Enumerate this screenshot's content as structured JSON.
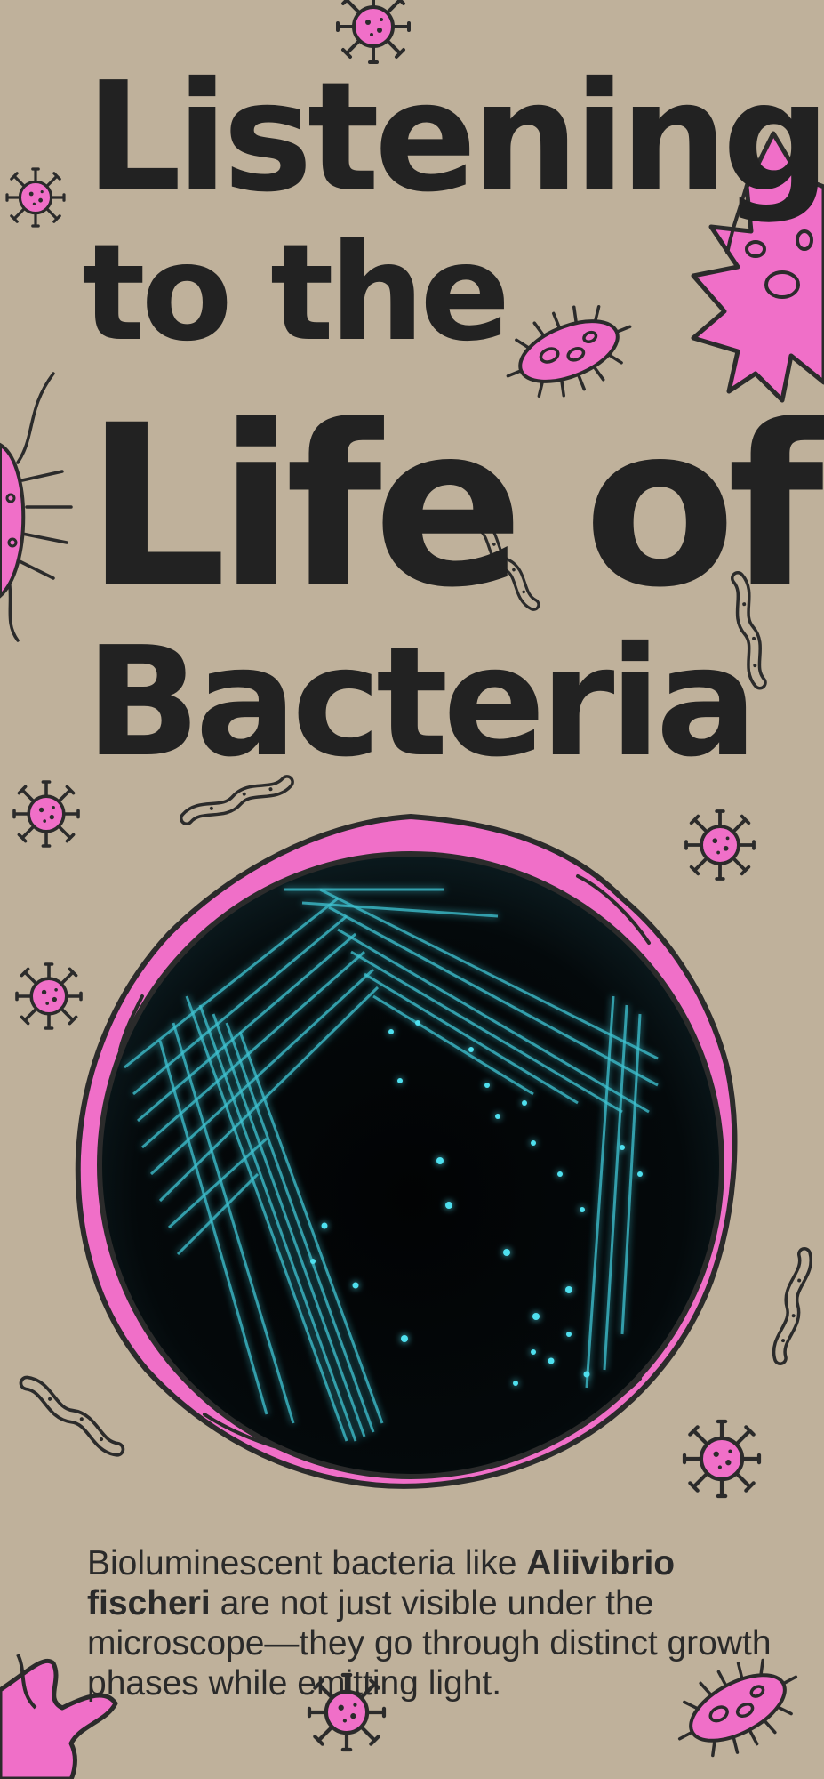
{
  "poster": {
    "title_line_1": "Listening",
    "title_line_2": "to the",
    "title_line_3": "Life of",
    "title_line_4": "Bacteria",
    "caption_lead": "Bioluminescent bacteria like ",
    "caption_species": "Aliivibrio fischeri",
    "caption_rest": " are not just visible under the microscope—they go through distinct growth phases while emitting light."
  },
  "colors": {
    "background": "#bfb19b",
    "title": "#222222",
    "microbe_pink": "#f06fc8",
    "outline": "#2b2b2b",
    "glow_cyan": "#3fd0e0",
    "dish_dark": "#030607"
  }
}
